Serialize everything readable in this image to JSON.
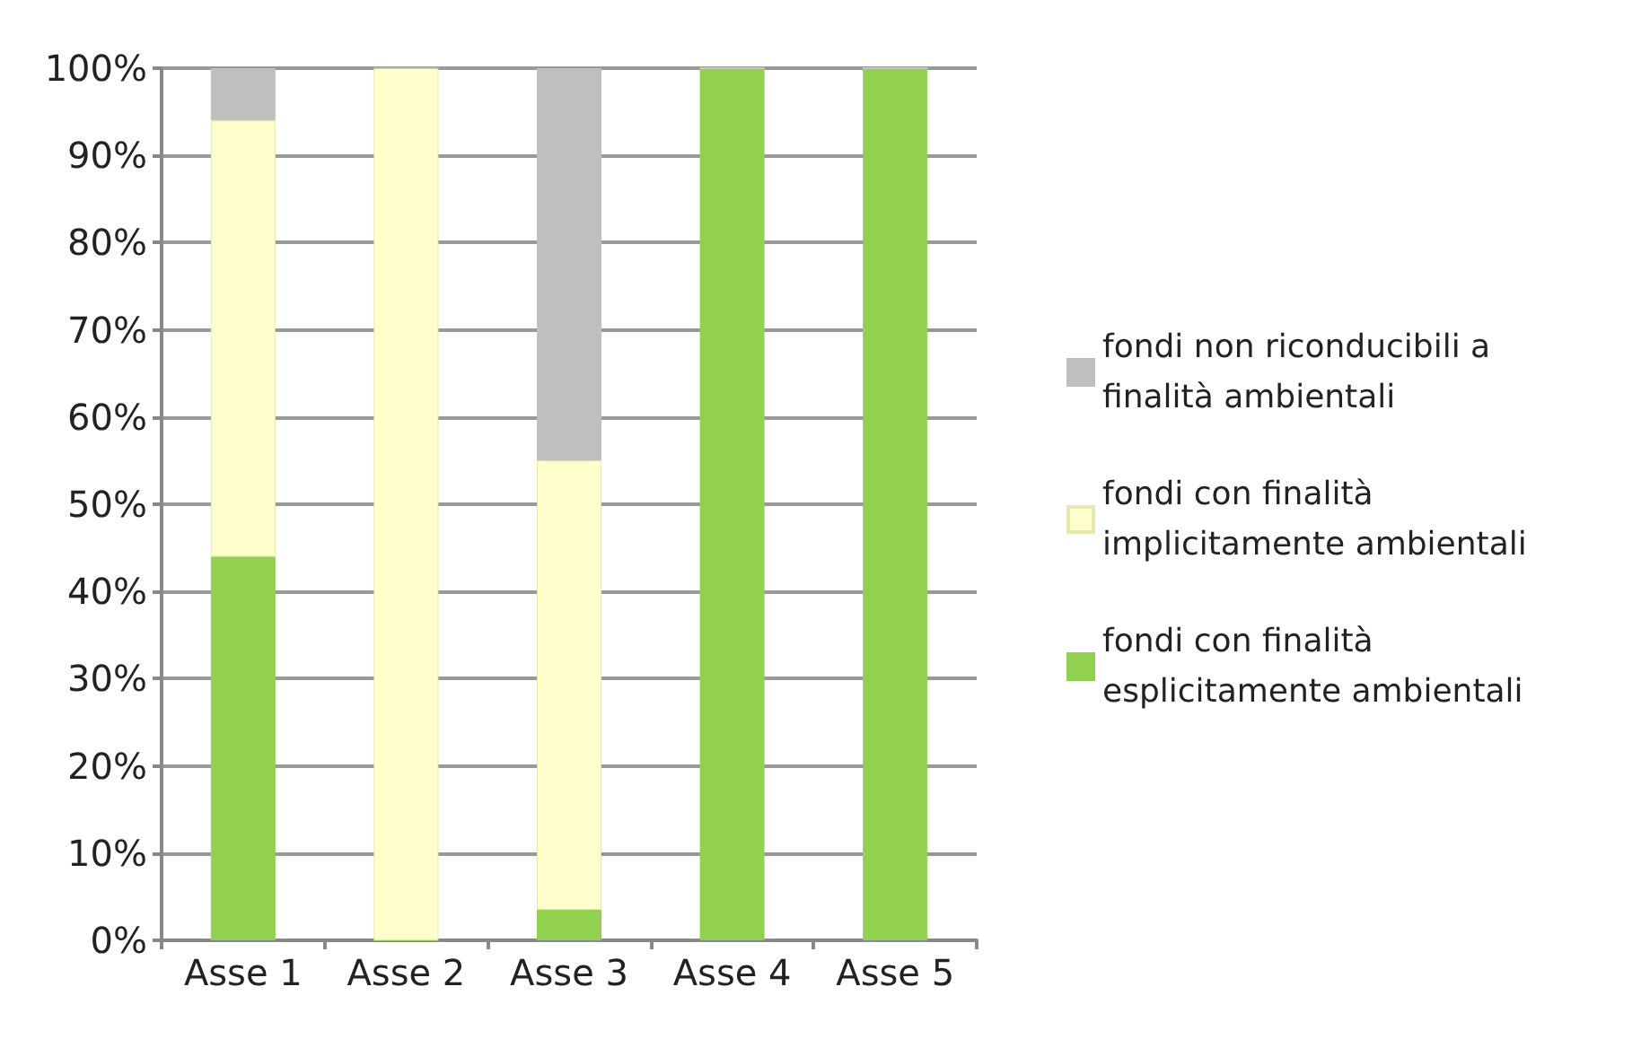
{
  "chart_data": {
    "type": "bar",
    "stacked": true,
    "categories": [
      "Asse 1",
      "Asse 2",
      "Asse 3",
      "Asse 4",
      "Asse 5"
    ],
    "series": [
      {
        "name": "fondi con finalità esplicitamente ambientali",
        "color": "#92d050",
        "values": [
          44,
          0,
          3.5,
          100,
          100
        ]
      },
      {
        "name": "fondi con finalità implicitamente ambientali",
        "color": "#ffffcc",
        "values": [
          50,
          100,
          51.5,
          0,
          0
        ]
      },
      {
        "name": "fondi non riconducibili a finalità ambientali",
        "color": "#bfbfbf",
        "values": [
          6,
          0,
          45,
          0,
          0
        ]
      }
    ],
    "ylim": [
      0,
      100
    ],
    "yticks": [
      {
        "value": 0,
        "label": "0%"
      },
      {
        "value": 10,
        "label": "10%"
      },
      {
        "value": 20,
        "label": "20%"
      },
      {
        "value": 30,
        "label": "30%"
      },
      {
        "value": 40,
        "label": "40%"
      },
      {
        "value": 50,
        "label": "50%"
      },
      {
        "value": 60,
        "label": "60%"
      },
      {
        "value": 70,
        "label": "70%"
      },
      {
        "value": 80,
        "label": "80%"
      },
      {
        "value": 90,
        "label": "90%"
      },
      {
        "value": 100,
        "label": "100%"
      }
    ],
    "grid": "y",
    "legend": "right"
  }
}
